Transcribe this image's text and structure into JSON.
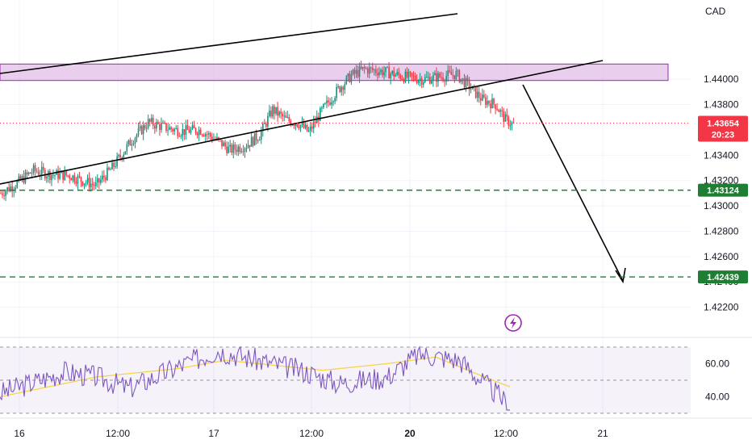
{
  "chart_data": {
    "type": "candlestick",
    "currency": "CAD",
    "price_axis": {
      "ticks": [
        "1.44000",
        "1.43800",
        "1.43400",
        "1.43200",
        "1.43000",
        "1.42800",
        "1.42600",
        "1.42400",
        "1.42200"
      ],
      "range": [
        1.42,
        1.446
      ]
    },
    "time_axis": {
      "labels": [
        "16",
        "12:00",
        "17",
        "12:00",
        "20",
        "12:00",
        "21"
      ],
      "bold": [
        "20"
      ]
    },
    "current_price": {
      "value": "1.43654",
      "countdown": "20:23",
      "color": "#f23645"
    },
    "levels": [
      {
        "value": "1.43124",
        "color": "#1e7e34"
      },
      {
        "value": "1.42439",
        "color": "#1e7e34"
      }
    ],
    "zone": {
      "from": 1.4399,
      "to": 1.4412,
      "color": "#e1bee7"
    },
    "colors": {
      "up": "#089981",
      "down": "#f23645",
      "rsi": "#7e57c2",
      "rsi_ma": "#f5d547"
    },
    "rsi": {
      "ticks": [
        "60.00",
        "40.00"
      ],
      "range": [
        30,
        70
      ]
    },
    "icon": "lightning-icon"
  }
}
